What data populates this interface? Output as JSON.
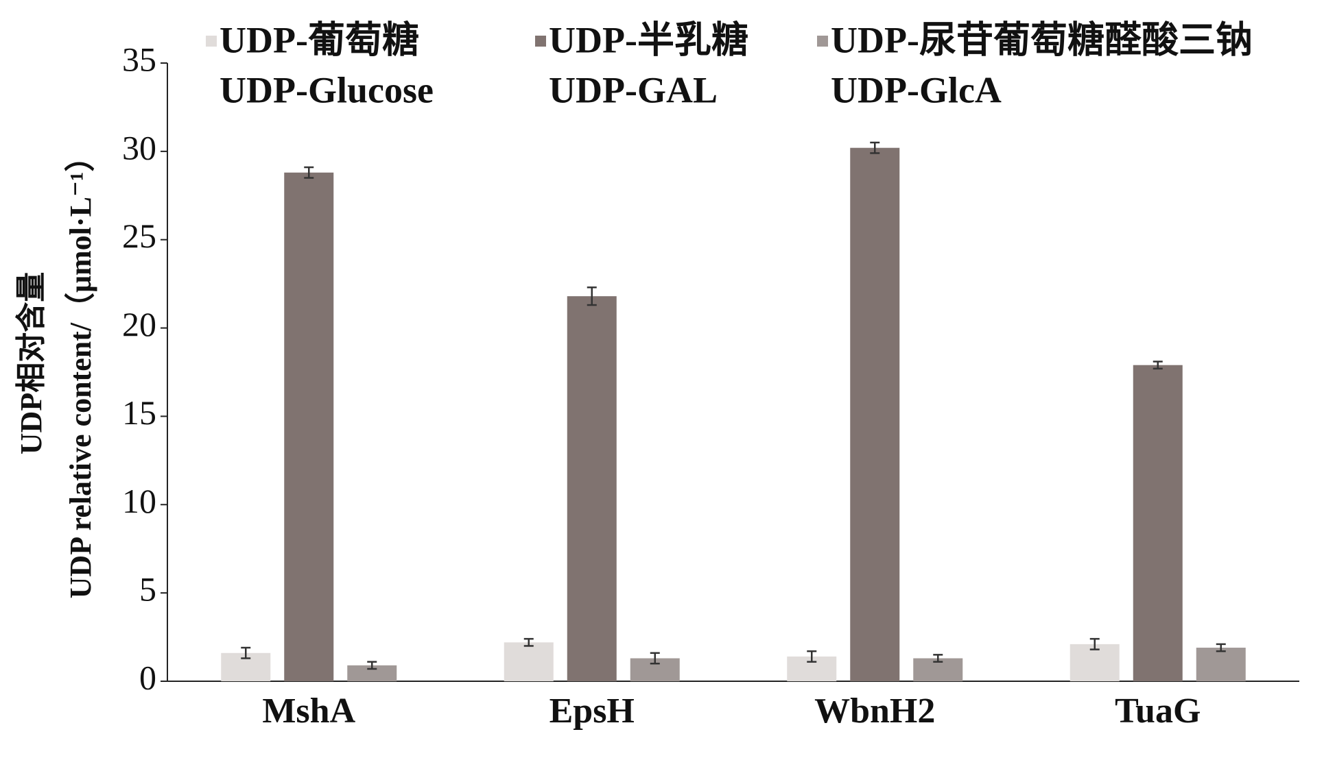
{
  "chart_data": {
    "type": "bar",
    "ylabel": [
      "UDP相对含量",
      "UDP relative content/（μmol·L⁻¹）"
    ],
    "categories": [
      "MshA",
      "EpsH",
      "WbnH2",
      "TuaG"
    ],
    "series": [
      {
        "name": "UDP-葡萄糖",
        "name_en": "UDP-Glucose",
        "color": "#e0dcda",
        "values": [
          1.6,
          2.2,
          1.4,
          2.1
        ],
        "errors": [
          0.3,
          0.2,
          0.3,
          0.3
        ]
      },
      {
        "name": "UDP-半乳糖",
        "name_en": "UDP-GAL",
        "color": "#807370",
        "values": [
          28.8,
          21.8,
          30.2,
          17.9
        ],
        "errors": [
          0.3,
          0.5,
          0.3,
          0.2
        ]
      },
      {
        "name": "UDP-尿苷葡萄糖醛酸三钠",
        "name_en": "UDP-GlcA",
        "color": "#a09896",
        "values": [
          0.9,
          1.3,
          1.3,
          1.9
        ],
        "errors": [
          0.2,
          0.3,
          0.2,
          0.2
        ]
      }
    ],
    "ylim": [
      0,
      35
    ],
    "yticks": [
      0,
      5,
      10,
      15,
      20,
      25,
      30,
      35
    ],
    "grid": false
  }
}
